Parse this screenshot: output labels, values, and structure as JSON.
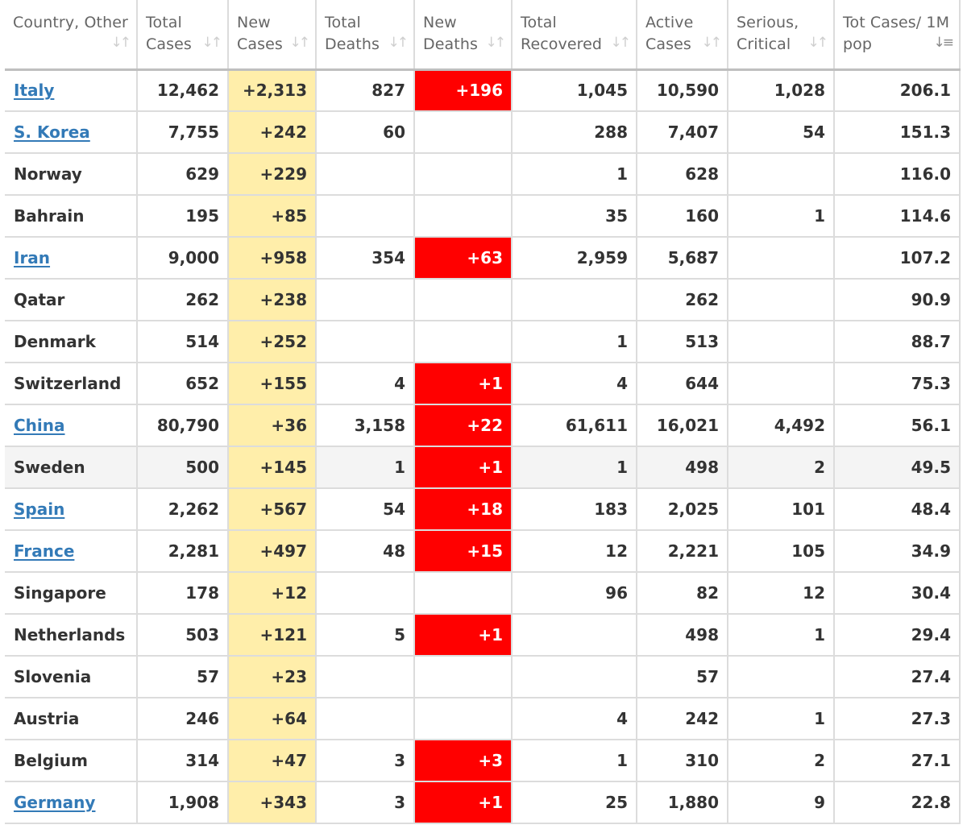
{
  "table": {
    "columns": [
      {
        "key": "country",
        "label": "Country, Other",
        "sort_active": false
      },
      {
        "key": "total_cases",
        "label": "Total Cases",
        "sort_active": false
      },
      {
        "key": "new_cases",
        "label": "New Cases",
        "sort_active": false
      },
      {
        "key": "total_deaths",
        "label": "Total Deaths",
        "sort_active": false
      },
      {
        "key": "new_deaths",
        "label": "New Deaths",
        "sort_active": false
      },
      {
        "key": "total_recovered",
        "label": "Total Recovered",
        "sort_active": false
      },
      {
        "key": "active_cases",
        "label": "Active Cases",
        "sort_active": false
      },
      {
        "key": "serious_critical",
        "label": "Serious, Critical",
        "sort_active": false
      },
      {
        "key": "tot_cases_per_1m",
        "label": "Tot Cases/ 1M pop",
        "sort_active": true
      }
    ],
    "sort_icon": "sort-arrows-icon",
    "active_sort_icon": "sort-descending-icon",
    "colors": {
      "new_cases_bg": "#ffeeaa",
      "new_deaths_bg": "#ff0000",
      "link": "#337ab7",
      "highlight_row_bg": "#f4f4f4"
    },
    "rows": [
      {
        "country": "Italy",
        "link": true,
        "total_cases": "12,462",
        "new_cases": "+2,313",
        "total_deaths": "827",
        "new_deaths": "+196",
        "total_recovered": "1,045",
        "active_cases": "10,590",
        "serious_critical": "1,028",
        "tot_cases_per_1m": "206.1"
      },
      {
        "country": "S. Korea",
        "link": true,
        "total_cases": "7,755",
        "new_cases": "+242",
        "total_deaths": "60",
        "new_deaths": "",
        "total_recovered": "288",
        "active_cases": "7,407",
        "serious_critical": "54",
        "tot_cases_per_1m": "151.3"
      },
      {
        "country": "Norway",
        "link": false,
        "total_cases": "629",
        "new_cases": "+229",
        "total_deaths": "",
        "new_deaths": "",
        "total_recovered": "1",
        "active_cases": "628",
        "serious_critical": "",
        "tot_cases_per_1m": "116.0"
      },
      {
        "country": "Bahrain",
        "link": false,
        "total_cases": "195",
        "new_cases": "+85",
        "total_deaths": "",
        "new_deaths": "",
        "total_recovered": "35",
        "active_cases": "160",
        "serious_critical": "1",
        "tot_cases_per_1m": "114.6"
      },
      {
        "country": "Iran",
        "link": true,
        "total_cases": "9,000",
        "new_cases": "+958",
        "total_deaths": "354",
        "new_deaths": "+63",
        "total_recovered": "2,959",
        "active_cases": "5,687",
        "serious_critical": "",
        "tot_cases_per_1m": "107.2"
      },
      {
        "country": "Qatar",
        "link": false,
        "total_cases": "262",
        "new_cases": "+238",
        "total_deaths": "",
        "new_deaths": "",
        "total_recovered": "",
        "active_cases": "262",
        "serious_critical": "",
        "tot_cases_per_1m": "90.9"
      },
      {
        "country": "Denmark",
        "link": false,
        "total_cases": "514",
        "new_cases": "+252",
        "total_deaths": "",
        "new_deaths": "",
        "total_recovered": "1",
        "active_cases": "513",
        "serious_critical": "",
        "tot_cases_per_1m": "88.7"
      },
      {
        "country": "Switzerland",
        "link": false,
        "total_cases": "652",
        "new_cases": "+155",
        "total_deaths": "4",
        "new_deaths": "+1",
        "total_recovered": "4",
        "active_cases": "644",
        "serious_critical": "",
        "tot_cases_per_1m": "75.3"
      },
      {
        "country": "China",
        "link": true,
        "total_cases": "80,790",
        "new_cases": "+36",
        "total_deaths": "3,158",
        "new_deaths": "+22",
        "total_recovered": "61,611",
        "active_cases": "16,021",
        "serious_critical": "4,492",
        "tot_cases_per_1m": "56.1"
      },
      {
        "country": "Sweden",
        "link": false,
        "highlight": true,
        "total_cases": "500",
        "new_cases": "+145",
        "total_deaths": "1",
        "new_deaths": "+1",
        "total_recovered": "1",
        "active_cases": "498",
        "serious_critical": "2",
        "tot_cases_per_1m": "49.5"
      },
      {
        "country": "Spain",
        "link": true,
        "total_cases": "2,262",
        "new_cases": "+567",
        "total_deaths": "54",
        "new_deaths": "+18",
        "total_recovered": "183",
        "active_cases": "2,025",
        "serious_critical": "101",
        "tot_cases_per_1m": "48.4"
      },
      {
        "country": "France",
        "link": true,
        "total_cases": "2,281",
        "new_cases": "+497",
        "total_deaths": "48",
        "new_deaths": "+15",
        "total_recovered": "12",
        "active_cases": "2,221",
        "serious_critical": "105",
        "tot_cases_per_1m": "34.9"
      },
      {
        "country": "Singapore",
        "link": false,
        "total_cases": "178",
        "new_cases": "+12",
        "total_deaths": "",
        "new_deaths": "",
        "total_recovered": "96",
        "active_cases": "82",
        "serious_critical": "12",
        "tot_cases_per_1m": "30.4"
      },
      {
        "country": "Netherlands",
        "link": false,
        "total_cases": "503",
        "new_cases": "+121",
        "total_deaths": "5",
        "new_deaths": "+1",
        "total_recovered": "",
        "active_cases": "498",
        "serious_critical": "1",
        "tot_cases_per_1m": "29.4"
      },
      {
        "country": "Slovenia",
        "link": false,
        "total_cases": "57",
        "new_cases": "+23",
        "total_deaths": "",
        "new_deaths": "",
        "total_recovered": "",
        "active_cases": "57",
        "serious_critical": "",
        "tot_cases_per_1m": "27.4"
      },
      {
        "country": "Austria",
        "link": false,
        "total_cases": "246",
        "new_cases": "+64",
        "total_deaths": "",
        "new_deaths": "",
        "total_recovered": "4",
        "active_cases": "242",
        "serious_critical": "1",
        "tot_cases_per_1m": "27.3"
      },
      {
        "country": "Belgium",
        "link": false,
        "total_cases": "314",
        "new_cases": "+47",
        "total_deaths": "3",
        "new_deaths": "+3",
        "total_recovered": "1",
        "active_cases": "310",
        "serious_critical": "2",
        "tot_cases_per_1m": "27.1"
      },
      {
        "country": "Germany",
        "link": true,
        "total_cases": "1,908",
        "new_cases": "+343",
        "total_deaths": "3",
        "new_deaths": "+1",
        "total_recovered": "25",
        "active_cases": "1,880",
        "serious_critical": "9",
        "tot_cases_per_1m": "22.8"
      }
    ]
  }
}
